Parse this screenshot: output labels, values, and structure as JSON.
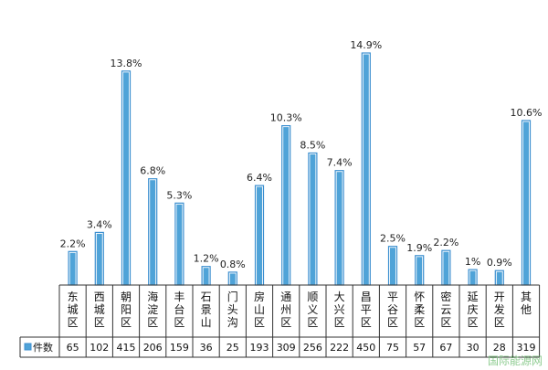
{
  "chart_data": {
    "type": "bar",
    "categories": [
      "东城区",
      "西城区",
      "朝阳区",
      "海淀区",
      "丰台区",
      "石景山",
      "门头沟",
      "房山区",
      "通州区",
      "顺义区",
      "大兴区",
      "昌平区",
      "平谷区",
      "怀柔区",
      "密云区",
      "延庆区",
      "开发区",
      "其他"
    ],
    "values": [
      65,
      102,
      415,
      206,
      159,
      36,
      25,
      193,
      309,
      256,
      222,
      450,
      75,
      57,
      67,
      30,
      28,
      319
    ],
    "percent_labels": [
      "2.2%",
      "3.4%",
      "13.8%",
      "6.8%",
      "5.3%",
      "1.2%",
      "0.8%",
      "6.4%",
      "10.3%",
      "8.5%",
      "7.4%",
      "14.9%",
      "2.5%",
      "1.9%",
      "2.2%",
      "1%",
      "0.9%",
      "10.6%"
    ],
    "series": [
      {
        "name": "件数",
        "values": [
          65,
          102,
          415,
          206,
          159,
          36,
          25,
          193,
          309,
          256,
          222,
          450,
          75,
          57,
          67,
          30,
          28,
          319
        ]
      }
    ],
    "legend_position": "data-table-left",
    "bar_color": "#4fa3d8",
    "grid": false
  },
  "watermark": "国际能源网"
}
